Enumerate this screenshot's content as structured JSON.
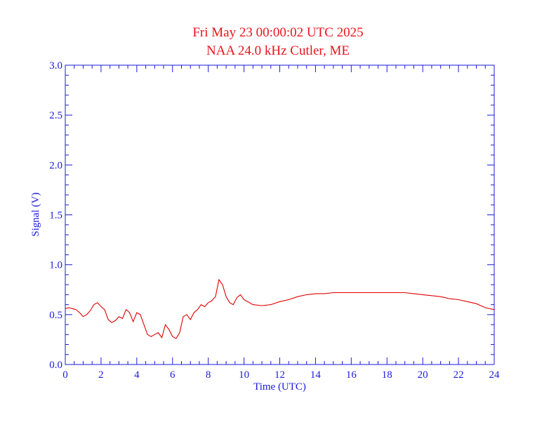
{
  "chart_data": {
    "type": "line",
    "title": "Fri May 23 00:00:02 UTC 2025",
    "subtitle": "NAA 24.0 kHz Cutler, ME",
    "xlabel": "Time (UTC)",
    "ylabel": "Signal (V)",
    "xlim": [
      0,
      24
    ],
    "ylim": [
      0,
      3.0
    ],
    "x_ticks": [
      0,
      2,
      4,
      6,
      8,
      10,
      12,
      14,
      16,
      18,
      20,
      22,
      24
    ],
    "x_tick_labels": [
      "0",
      "2",
      "4",
      "6",
      "8",
      "10",
      "12",
      "14",
      "16",
      "18",
      "20",
      "22",
      "24"
    ],
    "y_ticks": [
      0.0,
      0.5,
      1.0,
      1.5,
      2.0,
      2.5,
      3.0
    ],
    "y_tick_labels": [
      "0.0",
      "0.5",
      "1.0",
      "1.5",
      "2.0",
      "2.5",
      "3.0"
    ],
    "grid": false,
    "colors": {
      "title": "#e8141a",
      "axes": "#1a1adc",
      "series": "#e00000"
    },
    "series": [
      {
        "x": [
          0,
          0.2,
          0.4,
          0.6,
          0.8,
          1.0,
          1.2,
          1.4,
          1.6,
          1.8,
          2.0,
          2.2,
          2.4,
          2.6,
          2.8,
          3.0,
          3.2,
          3.4,
          3.6,
          3.8,
          4.0,
          4.2,
          4.4,
          4.6,
          4.8,
          5.0,
          5.2,
          5.4,
          5.6,
          5.8,
          6.0,
          6.2,
          6.4,
          6.6,
          6.8,
          7.0,
          7.2,
          7.4,
          7.6,
          7.8,
          8.0,
          8.2,
          8.4,
          8.6,
          8.8,
          9.0,
          9.2,
          9.4,
          9.6,
          9.8,
          10.0,
          10.5,
          11.0,
          11.5,
          12.0,
          12.5,
          13.0,
          13.5,
          14.0,
          14.5,
          15.0,
          15.5,
          16.0,
          16.5,
          17.0,
          17.5,
          18.0,
          18.5,
          19.0,
          19.5,
          20.0,
          20.5,
          21.0,
          21.5,
          22.0,
          22.5,
          23.0,
          23.5,
          24.0
        ],
        "y": [
          0.56,
          0.57,
          0.56,
          0.55,
          0.52,
          0.48,
          0.5,
          0.54,
          0.6,
          0.62,
          0.58,
          0.55,
          0.45,
          0.42,
          0.44,
          0.48,
          0.46,
          0.55,
          0.52,
          0.43,
          0.52,
          0.5,
          0.4,
          0.3,
          0.28,
          0.3,
          0.32,
          0.27,
          0.4,
          0.35,
          0.28,
          0.26,
          0.32,
          0.48,
          0.5,
          0.45,
          0.52,
          0.55,
          0.6,
          0.58,
          0.62,
          0.64,
          0.68,
          0.85,
          0.8,
          0.68,
          0.62,
          0.6,
          0.67,
          0.7,
          0.65,
          0.6,
          0.59,
          0.6,
          0.63,
          0.65,
          0.68,
          0.7,
          0.71,
          0.71,
          0.72,
          0.72,
          0.72,
          0.72,
          0.72,
          0.72,
          0.72,
          0.72,
          0.72,
          0.71,
          0.7,
          0.69,
          0.68,
          0.66,
          0.65,
          0.63,
          0.61,
          0.57,
          0.55
        ]
      }
    ]
  }
}
